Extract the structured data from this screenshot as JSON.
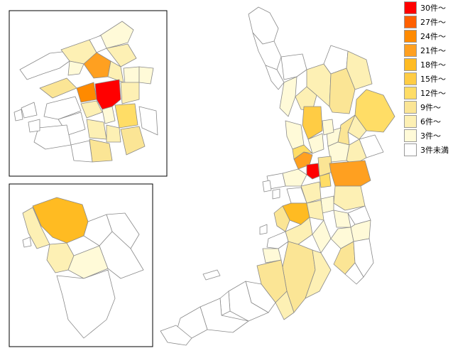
{
  "legend": [
    {
      "label": "30件～",
      "color": "#ff0000"
    },
    {
      "label": "27件～",
      "color": "#ff6000"
    },
    {
      "label": "24件～",
      "color": "#ff8a00"
    },
    {
      "label": "21件～",
      "color": "#ffa020"
    },
    {
      "label": "18件～",
      "color": "#ffbb22"
    },
    {
      "label": "15件～",
      "color": "#ffcc44"
    },
    {
      "label": "12件～",
      "color": "#ffdd66"
    },
    {
      "label": "9件～",
      "color": "#fbe595"
    },
    {
      "label": "6件～",
      "color": "#fdf0b4"
    },
    {
      "label": "3件～",
      "color": "#fffad8"
    },
    {
      "label": "3件未満",
      "color": "#ffffff"
    }
  ],
  "map": {
    "insets": [
      "osaka-city-inset",
      "sakai-city-inset"
    ],
    "main": "osaka-prefecture-map"
  }
}
